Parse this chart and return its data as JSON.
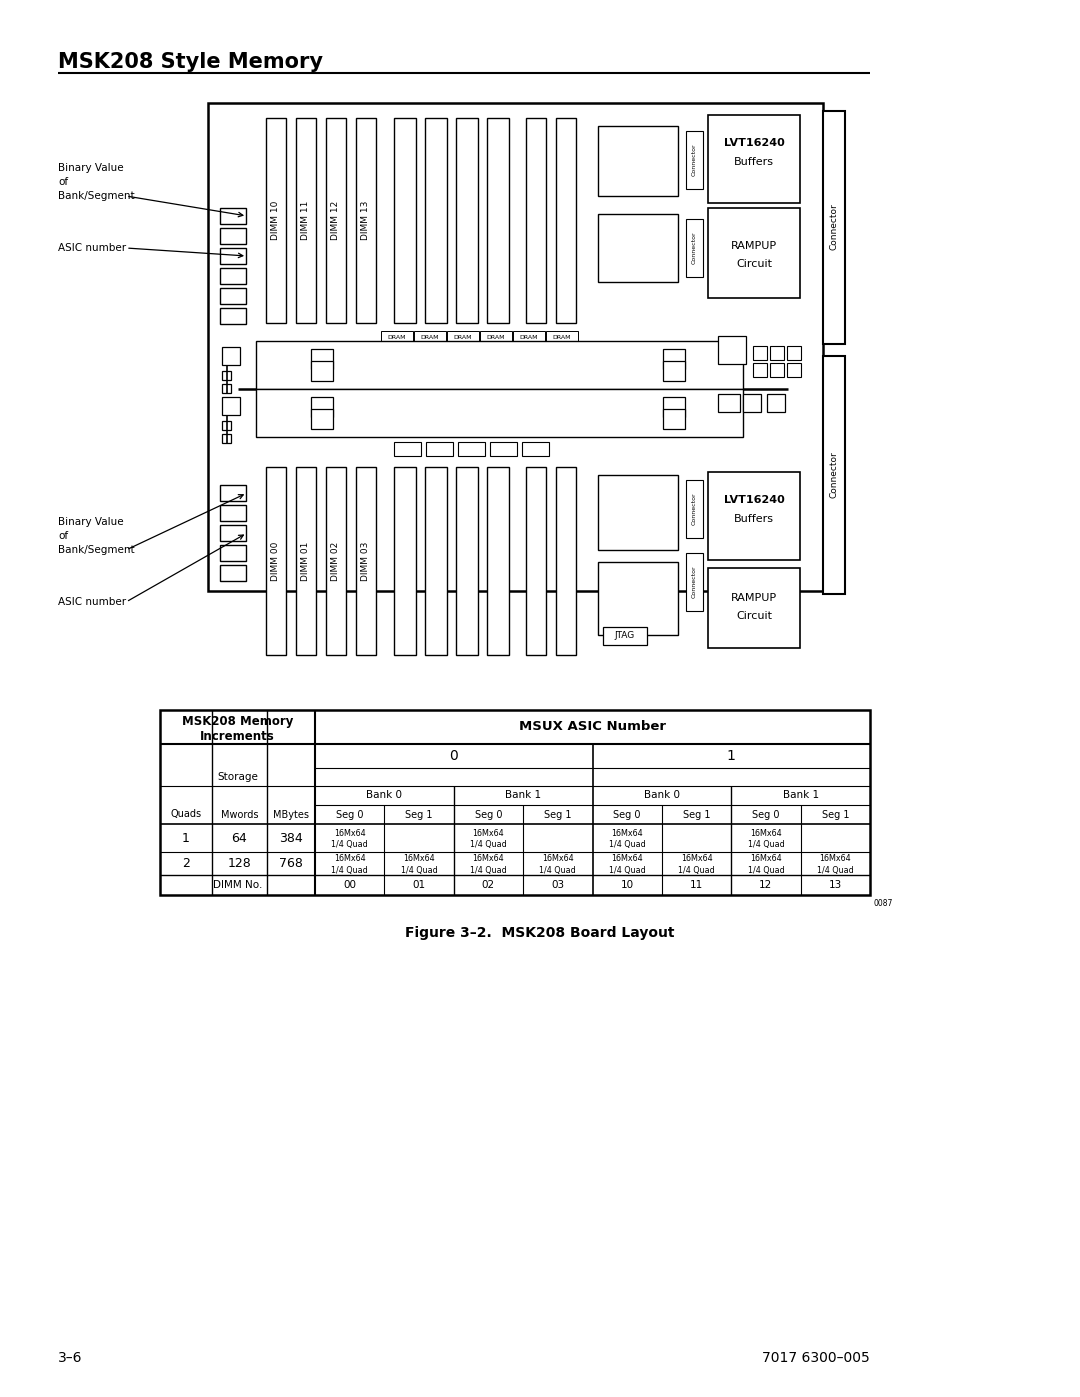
{
  "title": "MSK208 Style Memory",
  "figure_caption": "Figure 3–2.  MSK208 Board Layout",
  "page_left": "3–6",
  "page_right": "7017 6300–005",
  "bg_color": "#ffffff"
}
